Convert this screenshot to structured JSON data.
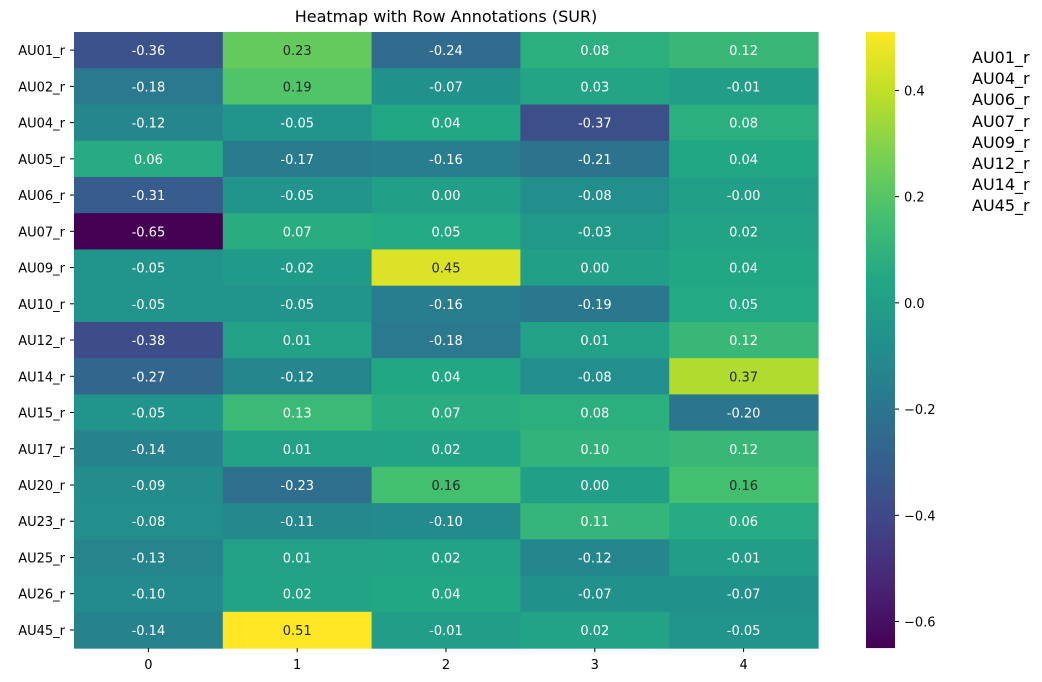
{
  "chart_data": {
    "type": "heatmap",
    "title": "Heatmap with Row Annotations (SUR)",
    "xlabel": "",
    "ylabel": "",
    "columns": [
      "0",
      "1",
      "2",
      "3",
      "4"
    ],
    "rows": [
      "AU01_r",
      "AU02_r",
      "AU04_r",
      "AU05_r",
      "AU06_r",
      "AU07_r",
      "AU09_r",
      "AU10_r",
      "AU12_r",
      "AU14_r",
      "AU15_r",
      "AU17_r",
      "AU20_r",
      "AU23_r",
      "AU25_r",
      "AU26_r",
      "AU45_r"
    ],
    "values": [
      [
        -0.36,
        0.23,
        -0.24,
        0.08,
        0.12
      ],
      [
        -0.18,
        0.19,
        -0.07,
        0.03,
        -0.01
      ],
      [
        -0.12,
        -0.05,
        0.04,
        -0.37,
        0.08
      ],
      [
        0.06,
        -0.17,
        -0.16,
        -0.21,
        0.04
      ],
      [
        -0.31,
        -0.05,
        0.0,
        -0.08,
        -0.0
      ],
      [
        -0.65,
        0.07,
        0.05,
        -0.03,
        0.02
      ],
      [
        -0.05,
        -0.02,
        0.45,
        0.0,
        0.04
      ],
      [
        -0.05,
        -0.05,
        -0.16,
        -0.19,
        0.05
      ],
      [
        -0.38,
        0.01,
        -0.18,
        0.01,
        0.12
      ],
      [
        -0.27,
        -0.12,
        0.04,
        -0.08,
        0.37
      ],
      [
        -0.05,
        0.13,
        0.07,
        0.08,
        -0.2
      ],
      [
        -0.14,
        0.01,
        0.02,
        0.1,
        0.12
      ],
      [
        -0.09,
        -0.23,
        0.16,
        0.0,
        0.16
      ],
      [
        -0.08,
        -0.11,
        -0.1,
        0.11,
        0.06
      ],
      [
        -0.13,
        0.01,
        0.02,
        -0.12,
        -0.01
      ],
      [
        -0.1,
        0.02,
        0.04,
        -0.07,
        -0.07
      ],
      [
        -0.14,
        0.51,
        -0.01,
        0.02,
        -0.05
      ]
    ],
    "labels": [
      [
        "-0.36",
        "0.23",
        "-0.24",
        "0.08",
        "0.12"
      ],
      [
        "-0.18",
        "0.19",
        "-0.07",
        "0.03",
        "-0.01"
      ],
      [
        "-0.12",
        "-0.05",
        "0.04",
        "-0.37",
        "0.08"
      ],
      [
        "0.06",
        "-0.17",
        "-0.16",
        "-0.21",
        "0.04"
      ],
      [
        "-0.31",
        "-0.05",
        "0.00",
        "-0.08",
        "-0.00"
      ],
      [
        "-0.65",
        "0.07",
        "0.05",
        "-0.03",
        "0.02"
      ],
      [
        "-0.05",
        "-0.02",
        "0.45",
        "0.00",
        "0.04"
      ],
      [
        "-0.05",
        "-0.05",
        "-0.16",
        "-0.19",
        "0.05"
      ],
      [
        "-0.38",
        "0.01",
        "-0.18",
        "0.01",
        "0.12"
      ],
      [
        "-0.27",
        "-0.12",
        "0.04",
        "-0.08",
        "0.37"
      ],
      [
        "-0.05",
        "0.13",
        "0.07",
        "0.08",
        "-0.20"
      ],
      [
        "-0.14",
        "0.01",
        "0.02",
        "0.10",
        "0.12"
      ],
      [
        "-0.09",
        "-0.23",
        "0.16",
        "0.00",
        "0.16"
      ],
      [
        "-0.08",
        "-0.11",
        "-0.10",
        "0.11",
        "0.06"
      ],
      [
        "-0.13",
        "0.01",
        "0.02",
        "-0.12",
        "-0.01"
      ],
      [
        "-0.10",
        "0.02",
        "0.04",
        "-0.07",
        "-0.07"
      ],
      [
        "-0.14",
        "0.51",
        "-0.01",
        "0.02",
        "-0.05"
      ]
    ],
    "colormap": "viridis",
    "vmin": -0.65,
    "vmax": 0.51,
    "colorbar_ticks": [
      0.4,
      0.2,
      0.0,
      -0.2,
      -0.4,
      -0.6
    ],
    "colorbar_tick_labels": [
      "0.4",
      "0.2",
      "0.0",
      "−0.2",
      "−0.4",
      "−0.6"
    ],
    "row_annotations": [
      "AU01_r",
      "AU04_r",
      "AU06_r",
      "AU07_r",
      "AU09_r",
      "AU12_r",
      "AU14_r",
      "AU45_r"
    ]
  }
}
